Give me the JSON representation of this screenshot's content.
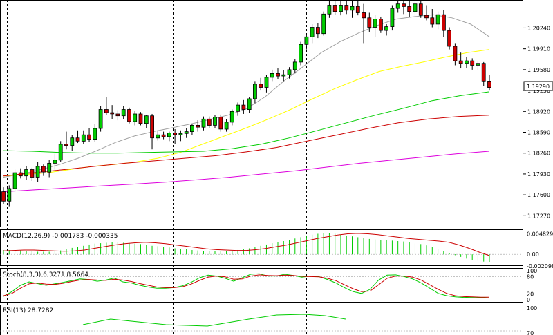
{
  "chart_data": {
    "type": "candlestick",
    "current_price": "1.19290",
    "main_axis": {
      "ticks": [
        "1.20240",
        "1.19910",
        "1.19580",
        "1.19250",
        "1.18920",
        "1.18590",
        "1.18260",
        "1.17930",
        "1.17600",
        "1.17270"
      ],
      "ylim": [
        1.1711,
        1.2066
      ]
    },
    "candles": [
      [
        1.1765,
        1.1772,
        1.1745,
        1.175
      ],
      [
        1.175,
        1.1775,
        1.1742,
        1.177
      ],
      [
        1.177,
        1.18,
        1.1766,
        1.1795
      ],
      [
        1.1795,
        1.1802,
        1.1786,
        1.179
      ],
      [
        1.179,
        1.1805,
        1.1784,
        1.18
      ],
      [
        1.18,
        1.1803,
        1.1782,
        1.1788
      ],
      [
        1.1788,
        1.1812,
        1.178,
        1.1805
      ],
      [
        1.1805,
        1.1808,
        1.179,
        1.1796
      ],
      [
        1.1796,
        1.1815,
        1.1788,
        1.181
      ],
      [
        1.181,
        1.1825,
        1.18,
        1.1815
      ],
      [
        1.1815,
        1.1845,
        1.1812,
        1.184
      ],
      [
        1.184,
        1.186,
        1.1832,
        1.1838
      ],
      [
        1.1838,
        1.1855,
        1.183,
        1.185
      ],
      [
        1.185,
        1.1862,
        1.1842,
        1.1845
      ],
      [
        1.1845,
        1.1862,
        1.184,
        1.1855
      ],
      [
        1.1855,
        1.1866,
        1.1844,
        1.1848
      ],
      [
        1.1848,
        1.1872,
        1.1844,
        1.1865
      ],
      [
        1.1865,
        1.19,
        1.186,
        1.1895
      ],
      [
        1.1895,
        1.1915,
        1.1886,
        1.189
      ],
      [
        1.189,
        1.1902,
        1.188,
        1.1888
      ],
      [
        1.1888,
        1.1894,
        1.1878,
        1.1885
      ],
      [
        1.1885,
        1.19,
        1.188,
        1.1895
      ],
      [
        1.1895,
        1.1898,
        1.1873,
        1.1876
      ],
      [
        1.1876,
        1.1893,
        1.187,
        1.1888
      ],
      [
        1.1888,
        1.1891,
        1.187,
        1.1873
      ],
      [
        1.1873,
        1.1886,
        1.1865,
        1.1885
      ],
      [
        1.1885,
        1.1888,
        1.1832,
        1.185
      ],
      [
        1.185,
        1.1862,
        1.1846,
        1.1855
      ],
      [
        1.1855,
        1.186,
        1.1848,
        1.1852
      ],
      [
        1.1852,
        1.186,
        1.1845,
        1.1858
      ],
      [
        1.1858,
        1.1864,
        1.184,
        1.1855
      ],
      [
        1.1855,
        1.1862,
        1.1845,
        1.1857
      ],
      [
        1.1857,
        1.1866,
        1.185,
        1.186
      ],
      [
        1.186,
        1.1872,
        1.1855,
        1.187
      ],
      [
        1.187,
        1.1878,
        1.186,
        1.1867
      ],
      [
        1.1867,
        1.1884,
        1.1862,
        1.188
      ],
      [
        1.188,
        1.1884,
        1.1866,
        1.187
      ],
      [
        1.187,
        1.1886,
        1.1866,
        1.1883
      ],
      [
        1.1883,
        1.1887,
        1.186,
        1.1864
      ],
      [
        1.1864,
        1.188,
        1.186,
        1.1875
      ],
      [
        1.1875,
        1.1895,
        1.187,
        1.1892
      ],
      [
        1.1892,
        1.1906,
        1.1885,
        1.1902
      ],
      [
        1.1902,
        1.191,
        1.1888,
        1.1895
      ],
      [
        1.1895,
        1.1915,
        1.189,
        1.1912
      ],
      [
        1.1912,
        1.194,
        1.1905,
        1.1935
      ],
      [
        1.1935,
        1.1945,
        1.1925,
        1.193
      ],
      [
        1.193,
        1.195,
        1.1922,
        1.1946
      ],
      [
        1.1946,
        1.1958,
        1.194,
        1.1952
      ],
      [
        1.1952,
        1.196,
        1.1943,
        1.1948
      ],
      [
        1.1948,
        1.1957,
        1.194,
        1.195
      ],
      [
        1.195,
        1.1962,
        1.1944,
        1.1958
      ],
      [
        1.1958,
        1.1975,
        1.1952,
        1.197
      ],
      [
        1.197,
        1.2002,
        1.1965,
        1.1998
      ],
      [
        1.1998,
        1.2015,
        1.199,
        1.201
      ],
      [
        1.201,
        1.203,
        1.2,
        1.2025
      ],
      [
        1.2025,
        1.2032,
        1.2008,
        1.2015
      ],
      [
        1.2015,
        1.205,
        1.2012,
        1.2046
      ],
      [
        1.2046,
        1.2066,
        1.204,
        1.206
      ],
      [
        1.206,
        1.2066,
        1.2045,
        1.205
      ],
      [
        1.205,
        1.2066,
        1.2044,
        1.206
      ],
      [
        1.206,
        1.2066,
        1.2046,
        1.2052
      ],
      [
        1.2052,
        1.2066,
        1.204,
        1.2058
      ],
      [
        1.2058,
        1.2066,
        1.2044,
        1.2048
      ],
      [
        1.2048,
        1.2062,
        1.2,
        1.204
      ],
      [
        1.204,
        1.2048,
        1.2018,
        1.2025
      ],
      [
        1.2025,
        1.2045,
        1.201,
        1.2038
      ],
      [
        1.2038,
        1.2042,
        1.2016,
        1.202
      ],
      [
        1.202,
        1.203,
        1.2012,
        1.2026
      ],
      [
        1.2026,
        1.206,
        1.202,
        1.2055
      ],
      [
        1.2055,
        1.2066,
        1.2048,
        1.2062
      ],
      [
        1.2062,
        1.2066,
        1.2046,
        1.2058
      ],
      [
        1.2058,
        1.2066,
        1.2042,
        1.205
      ],
      [
        1.205,
        1.2066,
        1.204,
        1.2062
      ],
      [
        1.2062,
        1.2066,
        1.204,
        1.2044
      ],
      [
        1.2044,
        1.206,
        1.2036,
        1.204
      ],
      [
        1.204,
        1.2054,
        1.2025,
        1.203
      ],
      [
        1.203,
        1.205,
        1.2022,
        1.2045
      ],
      [
        1.2045,
        1.2052,
        1.201,
        1.202
      ],
      [
        1.202,
        1.2025,
        1.199,
        1.1995
      ],
      [
        1.1995,
        1.2,
        1.1965,
        1.1972
      ],
      [
        1.1972,
        1.1985,
        1.196,
        1.1968
      ],
      [
        1.1968,
        1.1978,
        1.196,
        1.1972
      ],
      [
        1.1972,
        1.1976,
        1.1958,
        1.1965
      ],
      [
        1.1965,
        1.1972,
        1.1957,
        1.1968
      ],
      [
        1.1968,
        1.197,
        1.1932,
        1.194
      ],
      [
        1.194,
        1.195,
        1.1925,
        1.193
      ]
    ],
    "moving_averages": [
      {
        "color": "#a0a0a0",
        "values": [
          1.1788,
          1.1793,
          1.18,
          1.1808,
          1.1818,
          1.183,
          1.1843,
          1.1853,
          1.186,
          1.1866,
          1.1872,
          1.1879,
          1.1886,
          1.1896,
          1.1915,
          1.194,
          1.1962,
          1.1985,
          1.2002,
          1.2016,
          1.2028,
          1.2038,
          1.2042,
          1.2045,
          1.204,
          1.203,
          1.201
        ]
      },
      {
        "color": "#ffff00",
        "values": [
          1.179,
          1.1792,
          1.1795,
          1.18,
          1.1805,
          1.1808,
          1.1812,
          1.1818,
          1.1827,
          1.184,
          1.1853,
          1.1866,
          1.188,
          1.1895,
          1.1912,
          1.1928,
          1.1942,
          1.1955,
          1.1963,
          1.197,
          1.1978,
          1.1985,
          1.199
        ]
      },
      {
        "color": "#00cc00",
        "values": [
          1.183,
          1.1829,
          1.1827,
          1.1826,
          1.1826,
          1.1827,
          1.1828,
          1.1829,
          1.1833,
          1.184,
          1.185,
          1.1862,
          1.1874,
          1.1886,
          1.1897,
          1.1909,
          1.1917,
          1.1923
        ]
      },
      {
        "color": "#cc0000",
        "values": [
          1.179,
          1.1795,
          1.18,
          1.1805,
          1.181,
          1.1814,
          1.1818,
          1.1822,
          1.1828,
          1.1835,
          1.1845,
          1.1855,
          1.1865,
          1.1874,
          1.188,
          1.1884,
          1.1886
        ]
      },
      {
        "color": "#dd00dd",
        "values": [
          1.1765,
          1.1768,
          1.1771,
          1.1774,
          1.1777,
          1.178,
          1.1784,
          1.1788,
          1.1793,
          1.1798,
          1.1804,
          1.181,
          1.1815,
          1.182,
          1.1825,
          1.1829
        ]
      }
    ],
    "macd": {
      "label": "MACD(12,26,9) -0.001783 -0.000335",
      "ticks": [
        "0.004829",
        "0.00",
        "-0.002098"
      ],
      "ylim": [
        -0.0024,
        0.0052
      ],
      "histogram": [
        0.001,
        0.001,
        0.001,
        0.0009,
        0.0008,
        0.0007,
        0.0006,
        0.0006,
        0.0006,
        0.0007,
        0.0009,
        0.0012,
        0.0015,
        0.0018,
        0.002,
        0.0023,
        0.0025,
        0.0026,
        0.0027,
        0.0028,
        0.0028,
        0.0027,
        0.0026,
        0.0025,
        0.0024,
        0.0022,
        0.002,
        0.0019,
        0.0018,
        0.0016,
        0.0014,
        0.0013,
        0.0012,
        0.001,
        0.0009,
        0.0008,
        0.0008,
        0.0007,
        0.0007,
        0.0007,
        0.0008,
        0.001,
        0.0012,
        0.0014,
        0.0017,
        0.002,
        0.0023,
        0.0026,
        0.0029,
        0.0031,
        0.0034,
        0.0037,
        0.004,
        0.0043,
        0.0046,
        0.0048,
        0.0049,
        0.0049,
        0.0048,
        0.0046,
        0.0044,
        0.0042,
        0.004,
        0.0038,
        0.0036,
        0.0035,
        0.0034,
        0.0033,
        0.0032,
        0.0031,
        0.003,
        0.0028,
        0.0026,
        0.0024,
        0.0021,
        0.0017,
        0.0013,
        0.0008,
        0.0003,
        -0.0002,
        -0.0006,
        -0.001,
        -0.0013,
        -0.0015,
        -0.0017,
        -0.0018
      ],
      "signal": [
        0.0008,
        0.0009,
        0.001,
        0.001,
        0.0009,
        0.0008,
        0.0007,
        0.0008,
        0.001,
        0.0014,
        0.0018,
        0.0022,
        0.0025,
        0.0027,
        0.0028,
        0.0027,
        0.0025,
        0.0022,
        0.0019,
        0.0016,
        0.0013,
        0.0011,
        0.001,
        0.0009,
        0.0009,
        0.0011,
        0.0014,
        0.0018,
        0.0022,
        0.0027,
        0.0032,
        0.0037,
        0.0041,
        0.0045,
        0.0048,
        0.0049,
        0.0048,
        0.0046,
        0.0043,
        0.004,
        0.0037,
        0.0035,
        0.0033,
        0.0031,
        0.0028,
        0.0022,
        0.0014,
        0.0005,
        -0.0003
      ]
    },
    "stochastic": {
      "label": "Stoch(8,3,3) 6.3271 8.5664",
      "ticks": [
        "100",
        "80",
        "20",
        "0"
      ],
      "ylim": [
        0,
        100
      ],
      "main": [
        12,
        28,
        50,
        62,
        56,
        50,
        55,
        60,
        66,
        72,
        70,
        64,
        68,
        75,
        62,
        58,
        50,
        44,
        40,
        40,
        42,
        48,
        60,
        76,
        85,
        82,
        74,
        64,
        76,
        88,
        90,
        82,
        82,
        88,
        84,
        78,
        82,
        80,
        70,
        58,
        42,
        28,
        22,
        36,
        68,
        85,
        86,
        80,
        72,
        58,
        40,
        22,
        14,
        10,
        8,
        9,
        8,
        6
      ],
      "signal": [
        14,
        22,
        40,
        55,
        58,
        54,
        53,
        57,
        63,
        68,
        70,
        68,
        67,
        71,
        68,
        63,
        56,
        50,
        44,
        42,
        42,
        45,
        54,
        67,
        78,
        82,
        79,
        71,
        72,
        82,
        86,
        84,
        83,
        85,
        84,
        81,
        80,
        79,
        74,
        66,
        52,
        38,
        28,
        30,
        52,
        74,
        82,
        82,
        78,
        68,
        52,
        36,
        22,
        14,
        11,
        10,
        9,
        9
      ]
    },
    "rsi": {
      "label": "RSI(13) 28.7282",
      "ticks": [
        "100",
        "70"
      ]
    }
  }
}
